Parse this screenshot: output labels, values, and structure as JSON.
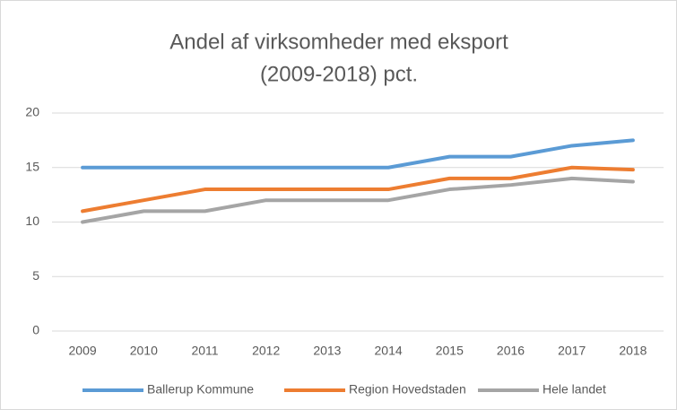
{
  "chart_data": {
    "type": "line",
    "title": [
      "Andel af virksomheder med eksport",
      "(2009-2018) pct."
    ],
    "categories": [
      "2009",
      "2010",
      "2011",
      "2012",
      "2013",
      "2014",
      "2015",
      "2016",
      "2017",
      "2018"
    ],
    "series": [
      {
        "name": "Ballerup Kommune",
        "color": "#5b9bd5",
        "values": [
          15,
          15,
          15,
          15,
          15,
          15,
          16,
          16,
          17,
          17.5
        ]
      },
      {
        "name": "Region Hovedstaden",
        "color": "#ed7d31",
        "values": [
          11,
          12,
          13,
          13,
          13,
          13,
          14,
          14,
          15,
          14.8
        ]
      },
      {
        "name": "Hele landet",
        "color": "#a5a5a5",
        "values": [
          10,
          11,
          11,
          12,
          12,
          12,
          13,
          13.4,
          14,
          13.7
        ]
      }
    ],
    "ylim": [
      0,
      20
    ],
    "yticks": [
      0,
      5,
      10,
      15,
      20
    ],
    "grid": true,
    "legend": "bottom"
  }
}
